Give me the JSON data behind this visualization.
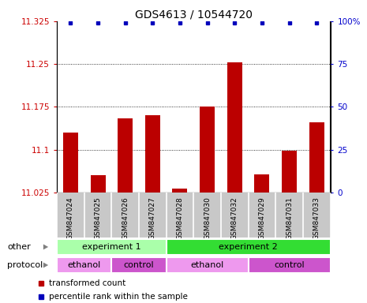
{
  "title": "GDS4613 / 10544720",
  "samples": [
    "GSM847024",
    "GSM847025",
    "GSM847026",
    "GSM847027",
    "GSM847028",
    "GSM847030",
    "GSM847032",
    "GSM847029",
    "GSM847031",
    "GSM847033"
  ],
  "bar_values": [
    11.13,
    11.055,
    11.155,
    11.16,
    11.032,
    11.175,
    11.253,
    11.057,
    11.098,
    11.148
  ],
  "ylim": [
    11.025,
    11.325
  ],
  "yticks_left": [
    11.025,
    11.1,
    11.175,
    11.25,
    11.325
  ],
  "ytick_labels_left": [
    "11.025",
    "11.1",
    "11.175",
    "11.25",
    "11.325"
  ],
  "yticks_right": [
    0,
    25,
    50,
    75,
    100
  ],
  "ytick_labels_right": [
    "0",
    "25",
    "50",
    "75",
    "100%"
  ],
  "bar_color": "#bb0000",
  "dot_color": "#0000bb",
  "bar_bottom": 11.025,
  "gridlines": [
    11.1,
    11.175,
    11.25
  ],
  "other_row": [
    {
      "label": "experiment 1",
      "start": 0,
      "end": 4,
      "color": "#aaffaa"
    },
    {
      "label": "experiment 2",
      "start": 4,
      "end": 10,
      "color": "#33dd33"
    }
  ],
  "protocol_row": [
    {
      "label": "ethanol",
      "start": 0,
      "end": 2,
      "color": "#ee99ee"
    },
    {
      "label": "control",
      "start": 2,
      "end": 4,
      "color": "#cc55cc"
    },
    {
      "label": "ethanol",
      "start": 4,
      "end": 7,
      "color": "#ee99ee"
    },
    {
      "label": "control",
      "start": 7,
      "end": 10,
      "color": "#cc55cc"
    }
  ],
  "legend_items": [
    {
      "label": "transformed count",
      "color": "#bb0000"
    },
    {
      "label": "percentile rank within the sample",
      "color": "#0000bb"
    }
  ],
  "left_label_color": "#cc0000",
  "right_label_color": "#0000cc",
  "title_fontsize": 10,
  "tick_fontsize": 7.5,
  "sample_fontsize": 6.5,
  "row_label_fontsize": 8,
  "row_content_fontsize": 8
}
